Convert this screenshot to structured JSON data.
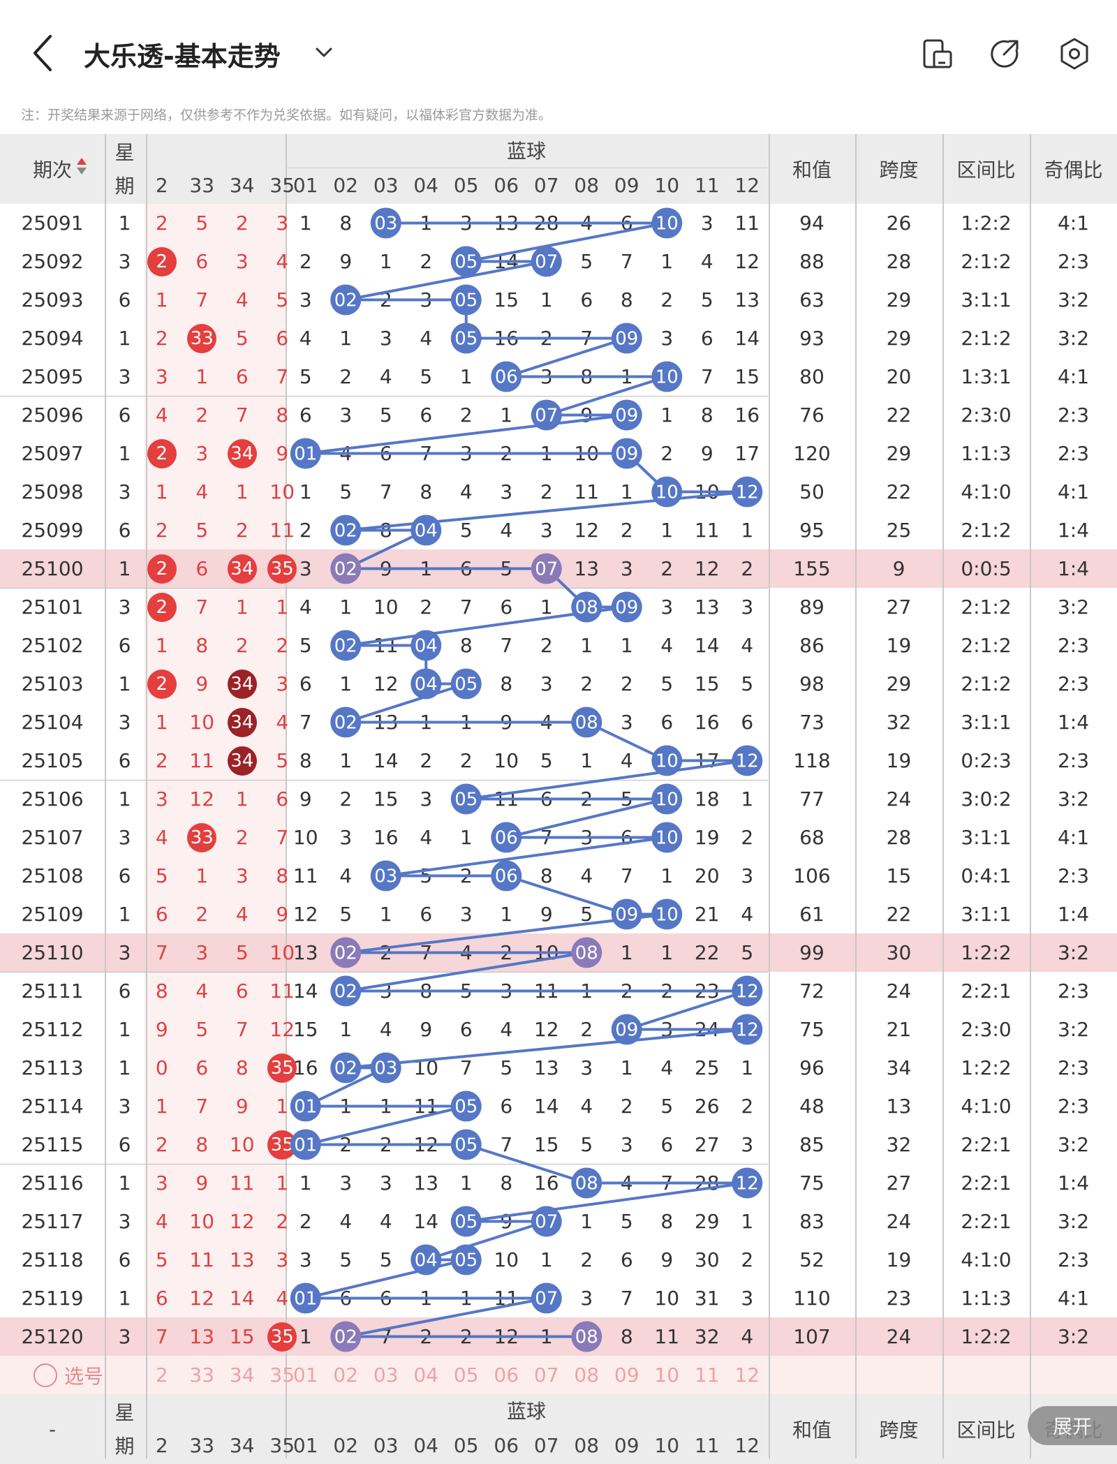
{
  "header": {
    "title": "大乐透-基本走势",
    "notice": "注：开奖结果来源于网络，仅供参考不作为兑奖依据。如有疑问，以福体彩官方数据为准。"
  },
  "icons": [
    "back-arrow-icon",
    "dropdown-chevron-icon",
    "phone-layout-icon",
    "share-icon",
    "settings-hexagon-icon"
  ],
  "colors": {
    "blue_ball": "#5577c6",
    "red_text": "#e04040",
    "red_ball": "#e53e3e",
    "dark_red_ball": "#9b2226",
    "highlight_row": "#f6d6d8",
    "purple_ball": "#8a7ab8"
  },
  "table": {
    "col_issue": "期次",
    "col_week_top": "星",
    "col_week_bottom": "期",
    "front_cols": [
      "2",
      "33",
      "34",
      "35"
    ],
    "blue_title": "蓝球",
    "blue_cols": [
      "01",
      "02",
      "03",
      "04",
      "05",
      "06",
      "07",
      "08",
      "09",
      "10",
      "11",
      "12"
    ],
    "stat_cols": [
      "和值",
      "跨度",
      "区间比",
      "奇偶比"
    ],
    "rows": [
      {
        "issue": "25091",
        "week": "1",
        "front": [
          "2",
          "5",
          "2",
          "3"
        ],
        "fhit": [],
        "blue": [
          "1",
          "8",
          "03",
          "1",
          "3",
          "13",
          "28",
          "4",
          "6",
          "10",
          "3",
          "11"
        ],
        "bhit": [
          2,
          9
        ],
        "sum": "94",
        "span": "26",
        "zone": "1:2:2",
        "oe": "4:1",
        "hl": false
      },
      {
        "issue": "25092",
        "week": "3",
        "front": [
          "2",
          "6",
          "3",
          "4"
        ],
        "fhit": [
          0
        ],
        "blue": [
          "2",
          "9",
          "1",
          "2",
          "05",
          "14",
          "07",
          "5",
          "7",
          "1",
          "4",
          "12"
        ],
        "bhit": [
          4,
          6
        ],
        "sum": "88",
        "span": "28",
        "zone": "2:1:2",
        "oe": "2:3",
        "hl": false
      },
      {
        "issue": "25093",
        "week": "6",
        "front": [
          "1",
          "7",
          "4",
          "5"
        ],
        "fhit": [],
        "blue": [
          "3",
          "02",
          "2",
          "3",
          "05",
          "15",
          "1",
          "6",
          "8",
          "2",
          "5",
          "13"
        ],
        "bhit": [
          1,
          4
        ],
        "sum": "63",
        "span": "29",
        "zone": "3:1:1",
        "oe": "3:2",
        "hl": false
      },
      {
        "issue": "25094",
        "week": "1",
        "front": [
          "2",
          "33",
          "5",
          "6"
        ],
        "fhit": [
          1
        ],
        "blue": [
          "4",
          "1",
          "3",
          "4",
          "05",
          "16",
          "2",
          "7",
          "09",
          "3",
          "6",
          "14"
        ],
        "bhit": [
          4,
          8
        ],
        "sum": "93",
        "span": "29",
        "zone": "2:1:2",
        "oe": "3:2",
        "hl": false
      },
      {
        "issue": "25095",
        "week": "3",
        "front": [
          "3",
          "1",
          "6",
          "7"
        ],
        "fhit": [],
        "blue": [
          "5",
          "2",
          "4",
          "5",
          "1",
          "06",
          "3",
          "8",
          "1",
          "10",
          "7",
          "15"
        ],
        "bhit": [
          5,
          9
        ],
        "sum": "80",
        "span": "20",
        "zone": "1:3:1",
        "oe": "4:1",
        "hl": false
      },
      {
        "issue": "25096",
        "week": "6",
        "front": [
          "4",
          "2",
          "7",
          "8"
        ],
        "fhit": [],
        "blue": [
          "6",
          "3",
          "5",
          "6",
          "2",
          "1",
          "07",
          "9",
          "09",
          "1",
          "8",
          "16"
        ],
        "bhit": [
          6,
          8
        ],
        "sum": "76",
        "span": "22",
        "zone": "2:3:0",
        "oe": "2:3",
        "hl": false
      },
      {
        "issue": "25097",
        "week": "1",
        "front": [
          "2",
          "3",
          "34",
          "9"
        ],
        "fhit": [
          0,
          2
        ],
        "blue": [
          "01",
          "4",
          "6",
          "7",
          "3",
          "2",
          "1",
          "10",
          "09",
          "2",
          "9",
          "17"
        ],
        "bhit": [
          0,
          8
        ],
        "sum": "120",
        "span": "29",
        "zone": "1:1:3",
        "oe": "2:3",
        "hl": false
      },
      {
        "issue": "25098",
        "week": "3",
        "front": [
          "1",
          "4",
          "1",
          "10"
        ],
        "fhit": [],
        "blue": [
          "1",
          "5",
          "7",
          "8",
          "4",
          "3",
          "2",
          "11",
          "1",
          "10",
          "10",
          "12"
        ],
        "bhit": [
          9,
          11
        ],
        "sum": "50",
        "span": "22",
        "zone": "4:1:0",
        "oe": "4:1",
        "hl": false
      },
      {
        "issue": "25099",
        "week": "6",
        "front": [
          "2",
          "5",
          "2",
          "11"
        ],
        "fhit": [],
        "blue": [
          "2",
          "02",
          "8",
          "04",
          "5",
          "4",
          "3",
          "12",
          "2",
          "1",
          "11",
          "1"
        ],
        "bhit": [
          1,
          3
        ],
        "sum": "95",
        "span": "25",
        "zone": "2:1:2",
        "oe": "1:4",
        "hl": false
      },
      {
        "issue": "25100",
        "week": "1",
        "front": [
          "2",
          "6",
          "34",
          "35"
        ],
        "fhit": [
          0,
          2,
          3
        ],
        "blue": [
          "3",
          "02",
          "9",
          "1",
          "6",
          "5",
          "07",
          "13",
          "3",
          "2",
          "12",
          "2"
        ],
        "bhit": [
          1,
          6
        ],
        "sum": "155",
        "span": "9",
        "zone": "0:0:5",
        "oe": "1:4",
        "hl": true
      },
      {
        "issue": "25101",
        "week": "3",
        "front": [
          "2",
          "7",
          "1",
          "1"
        ],
        "fhit": [
          0
        ],
        "blue": [
          "4",
          "1",
          "10",
          "2",
          "7",
          "6",
          "1",
          "08",
          "09",
          "3",
          "13",
          "3"
        ],
        "bhit": [
          7,
          8
        ],
        "sum": "89",
        "span": "27",
        "zone": "2:1:2",
        "oe": "3:2",
        "hl": false
      },
      {
        "issue": "25102",
        "week": "6",
        "front": [
          "1",
          "8",
          "2",
          "2"
        ],
        "fhit": [],
        "blue": [
          "5",
          "02",
          "11",
          "04",
          "8",
          "7",
          "2",
          "1",
          "1",
          "4",
          "14",
          "4"
        ],
        "bhit": [
          1,
          3
        ],
        "sum": "86",
        "span": "19",
        "zone": "2:1:2",
        "oe": "2:3",
        "hl": false
      },
      {
        "issue": "25103",
        "week": "1",
        "front": [
          "2",
          "9",
          "34",
          "3"
        ],
        "fhit": [
          0,
          2
        ],
        "blue": [
          "6",
          "1",
          "12",
          "04",
          "05",
          "8",
          "3",
          "2",
          "2",
          "5",
          "15",
          "5"
        ],
        "bhit": [
          3,
          4
        ],
        "sum": "98",
        "span": "29",
        "zone": "2:1:2",
        "oe": "2:3",
        "hl": false
      },
      {
        "issue": "25104",
        "week": "3",
        "front": [
          "1",
          "10",
          "34",
          "4"
        ],
        "fhit": [
          2
        ],
        "blue": [
          "7",
          "02",
          "13",
          "1",
          "1",
          "9",
          "4",
          "08",
          "3",
          "6",
          "16",
          "6"
        ],
        "bhit": [
          1,
          7
        ],
        "sum": "73",
        "span": "32",
        "zone": "3:1:1",
        "oe": "1:4",
        "hl": false
      },
      {
        "issue": "25105",
        "week": "6",
        "front": [
          "2",
          "11",
          "34",
          "5"
        ],
        "fhit": [
          2
        ],
        "blue": [
          "8",
          "1",
          "14",
          "2",
          "2",
          "10",
          "5",
          "1",
          "4",
          "10",
          "17",
          "12"
        ],
        "bhit": [
          9,
          11
        ],
        "sum": "118",
        "span": "19",
        "zone": "0:2:3",
        "oe": "2:3",
        "hl": false
      },
      {
        "issue": "25106",
        "week": "1",
        "front": [
          "3",
          "12",
          "1",
          "6"
        ],
        "fhit": [],
        "blue": [
          "9",
          "2",
          "15",
          "3",
          "05",
          "11",
          "6",
          "2",
          "5",
          "10",
          "18",
          "1"
        ],
        "bhit": [
          4,
          9
        ],
        "sum": "77",
        "span": "24",
        "zone": "3:0:2",
        "oe": "3:2",
        "hl": false
      },
      {
        "issue": "25107",
        "week": "3",
        "front": [
          "4",
          "33",
          "2",
          "7"
        ],
        "fhit": [
          1
        ],
        "blue": [
          "10",
          "3",
          "16",
          "4",
          "1",
          "06",
          "7",
          "3",
          "6",
          "10",
          "19",
          "2"
        ],
        "bhit": [
          5,
          9
        ],
        "sum": "68",
        "span": "28",
        "zone": "3:1:1",
        "oe": "4:1",
        "hl": false
      },
      {
        "issue": "25108",
        "week": "6",
        "front": [
          "5",
          "1",
          "3",
          "8"
        ],
        "fhit": [],
        "blue": [
          "11",
          "4",
          "03",
          "5",
          "2",
          "06",
          "8",
          "4",
          "7",
          "1",
          "20",
          "3"
        ],
        "bhit": [
          2,
          5
        ],
        "sum": "106",
        "span": "15",
        "zone": "0:4:1",
        "oe": "2:3",
        "hl": false
      },
      {
        "issue": "25109",
        "week": "1",
        "front": [
          "6",
          "2",
          "4",
          "9"
        ],
        "fhit": [],
        "blue": [
          "12",
          "5",
          "1",
          "6",
          "3",
          "1",
          "9",
          "5",
          "09",
          "10",
          "21",
          "4"
        ],
        "bhit": [
          8,
          9
        ],
        "sum": "61",
        "span": "22",
        "zone": "3:1:1",
        "oe": "1:4",
        "hl": false
      },
      {
        "issue": "25110",
        "week": "3",
        "front": [
          "7",
          "3",
          "5",
          "10"
        ],
        "fhit": [],
        "blue": [
          "13",
          "02",
          "2",
          "7",
          "4",
          "2",
          "10",
          "08",
          "1",
          "1",
          "22",
          "5"
        ],
        "bhit": [
          1,
          7
        ],
        "sum": "99",
        "span": "30",
        "zone": "1:2:2",
        "oe": "3:2",
        "hl": true
      },
      {
        "issue": "25111",
        "week": "6",
        "front": [
          "8",
          "4",
          "6",
          "11"
        ],
        "fhit": [],
        "blue": [
          "14",
          "02",
          "3",
          "8",
          "5",
          "3",
          "11",
          "1",
          "2",
          "2",
          "23",
          "12"
        ],
        "bhit": [
          1,
          11
        ],
        "sum": "72",
        "span": "24",
        "zone": "2:2:1",
        "oe": "2:3",
        "hl": false
      },
      {
        "issue": "25112",
        "week": "1",
        "front": [
          "9",
          "5",
          "7",
          "12"
        ],
        "fhit": [],
        "blue": [
          "15",
          "1",
          "4",
          "9",
          "6",
          "4",
          "12",
          "2",
          "09",
          "3",
          "24",
          "12"
        ],
        "bhit": [
          8,
          11
        ],
        "sum": "75",
        "span": "21",
        "zone": "2:3:0",
        "oe": "3:2",
        "hl": false
      },
      {
        "issue": "25113",
        "week": "1",
        "front": [
          "0",
          "6",
          "8",
          "35"
        ],
        "fhit": [
          3
        ],
        "blue": [
          "16",
          "02",
          "03",
          "10",
          "7",
          "5",
          "13",
          "3",
          "1",
          "4",
          "25",
          "1"
        ],
        "bhit": [
          1,
          2
        ],
        "sum": "96",
        "span": "34",
        "zone": "1:2:2",
        "oe": "2:3",
        "hl": false
      },
      {
        "issue": "25114",
        "week": "3",
        "front": [
          "1",
          "7",
          "9",
          "1"
        ],
        "fhit": [],
        "blue": [
          "01",
          "1",
          "1",
          "11",
          "05",
          "6",
          "14",
          "4",
          "2",
          "5",
          "26",
          "2"
        ],
        "bhit": [
          0,
          4
        ],
        "sum": "48",
        "span": "13",
        "zone": "4:1:0",
        "oe": "2:3",
        "hl": false
      },
      {
        "issue": "25115",
        "week": "6",
        "front": [
          "2",
          "8",
          "10",
          "35"
        ],
        "fhit": [
          3
        ],
        "blue": [
          "01",
          "2",
          "2",
          "12",
          "05",
          "7",
          "15",
          "5",
          "3",
          "6",
          "27",
          "3"
        ],
        "bhit": [
          0,
          4
        ],
        "sum": "85",
        "span": "32",
        "zone": "2:2:1",
        "oe": "3:2",
        "hl": false
      },
      {
        "issue": "25116",
        "week": "1",
        "front": [
          "3",
          "9",
          "11",
          "1"
        ],
        "fhit": [],
        "blue": [
          "1",
          "3",
          "3",
          "13",
          "1",
          "8",
          "16",
          "08",
          "4",
          "7",
          "28",
          "12"
        ],
        "bhit": [
          7,
          11
        ],
        "sum": "75",
        "span": "27",
        "zone": "2:2:1",
        "oe": "1:4",
        "hl": false
      },
      {
        "issue": "25117",
        "week": "3",
        "front": [
          "4",
          "10",
          "12",
          "2"
        ],
        "fhit": [],
        "blue": [
          "2",
          "4",
          "4",
          "14",
          "05",
          "9",
          "07",
          "1",
          "5",
          "8",
          "29",
          "1"
        ],
        "bhit": [
          4,
          6
        ],
        "sum": "83",
        "span": "24",
        "zone": "2:2:1",
        "oe": "3:2",
        "hl": false
      },
      {
        "issue": "25118",
        "week": "6",
        "front": [
          "5",
          "11",
          "13",
          "3"
        ],
        "fhit": [],
        "blue": [
          "3",
          "5",
          "5",
          "04",
          "05",
          "10",
          "1",
          "2",
          "6",
          "9",
          "30",
          "2"
        ],
        "bhit": [
          3,
          4
        ],
        "sum": "52",
        "span": "19",
        "zone": "4:1:0",
        "oe": "2:3",
        "hl": false
      },
      {
        "issue": "25119",
        "week": "1",
        "front": [
          "6",
          "12",
          "14",
          "4"
        ],
        "fhit": [],
        "blue": [
          "01",
          "6",
          "6",
          "1",
          "1",
          "11",
          "07",
          "3",
          "7",
          "10",
          "31",
          "3"
        ],
        "bhit": [
          0,
          6
        ],
        "sum": "110",
        "span": "23",
        "zone": "1:1:3",
        "oe": "4:1",
        "hl": false
      },
      {
        "issue": "25120",
        "week": "3",
        "front": [
          "7",
          "13",
          "15",
          "35"
        ],
        "fhit": [
          3
        ],
        "blue": [
          "1",
          "02",
          "7",
          "2",
          "2",
          "12",
          "1",
          "08",
          "8",
          "11",
          "32",
          "4"
        ],
        "bhit": [
          1,
          7
        ],
        "sum": "107",
        "span": "24",
        "zone": "1:2:2",
        "oe": "3:2",
        "hl": true
      }
    ],
    "select_label": "选号",
    "footer_issue": "-",
    "expand_label": "展开"
  }
}
